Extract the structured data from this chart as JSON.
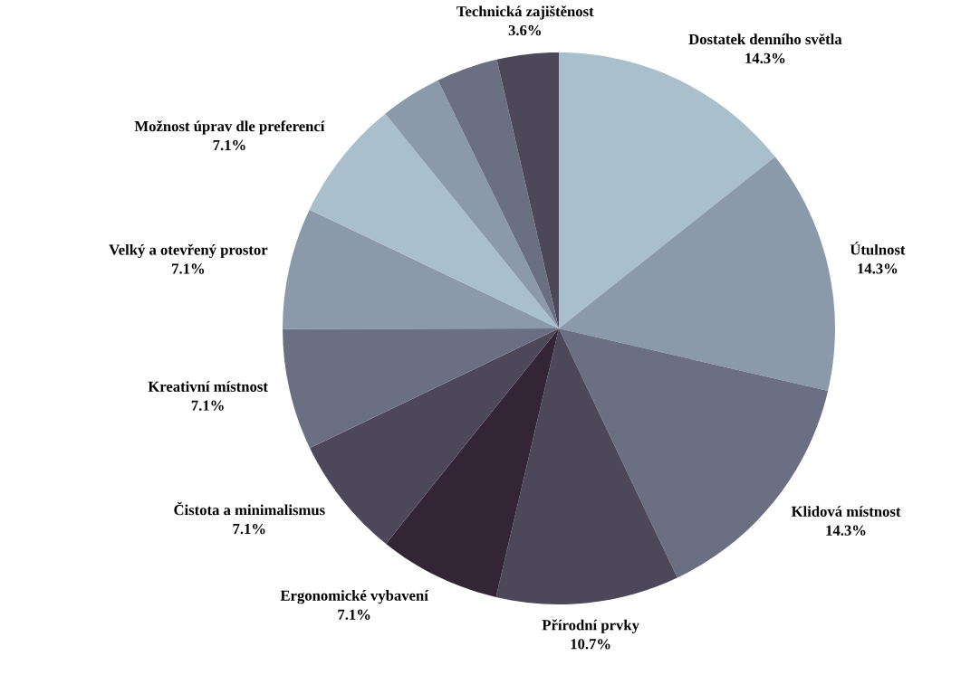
{
  "chart_data": {
    "type": "pie",
    "categories": [
      "Dostatek denního světla",
      "Útulnost",
      "Klidová místnost",
      "Přírodní prvky",
      "Ergonomické vybavení",
      "Čistota a minimalismus",
      "Kreativní místnost",
      "Velký a otevřený prostor",
      "Možnost úprav dle preferencí",
      null,
      null,
      "Technická zajištěnost"
    ],
    "values": [
      14.3,
      14.3,
      14.3,
      10.7,
      7.1,
      7.1,
      7.1,
      7.1,
      7.1,
      3.6,
      3.6,
      3.6
    ],
    "value_labels": [
      "14.3%",
      "14.3%",
      "14.3%",
      "10.7%",
      "7.1%",
      "7.1%",
      "7.1%",
      "7.1%",
      "7.1%",
      null,
      null,
      "3.6%"
    ],
    "colors": [
      "#a9bfcc",
      "#8a9aaa",
      "#6b6f82",
      "#4c4759",
      "#332535",
      "#4c4759",
      "#6b6f82",
      "#8a9aaa",
      "#a9bfcc",
      "#8a9aaa",
      "#6b6f82",
      "#4c4759"
    ]
  }
}
